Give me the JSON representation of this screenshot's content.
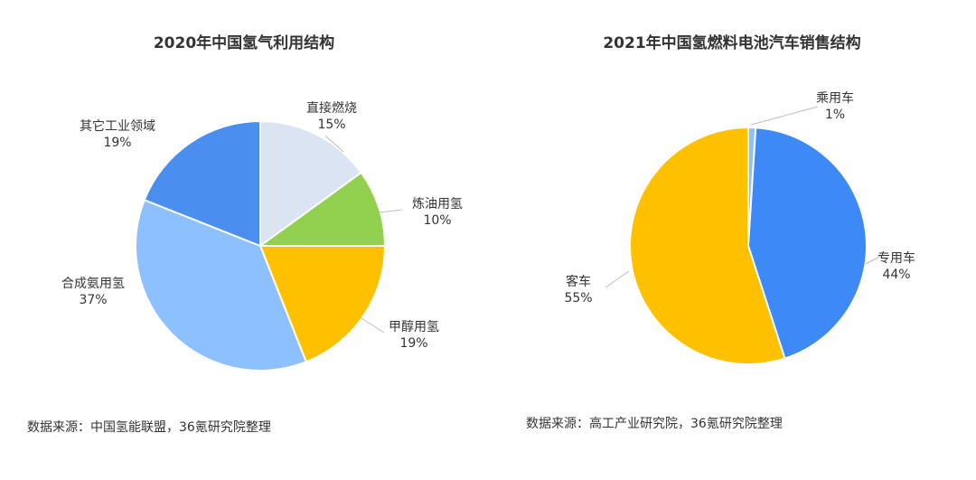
{
  "charts": [
    {
      "title": "2020年中国氢气利用结构",
      "source": "数据来源：中国氢能联盟，36氪研究院整理",
      "chart_data": {
        "type": "pie",
        "title": "2020年中国氢气利用结构",
        "slices": [
          {
            "name": "直接燃烧",
            "value": 15,
            "label": "15%",
            "color": "#dbe4f3"
          },
          {
            "name": "炼油用氢",
            "value": 10,
            "label": "10%",
            "color": "#92d050"
          },
          {
            "name": "甲醇用氢",
            "value": 19,
            "label": "19%",
            "color": "#ffc000"
          },
          {
            "name": "合成氨用氢",
            "value": 37,
            "label": "37%",
            "color": "#8cc0ff"
          },
          {
            "name": "其它工业领域",
            "value": 19,
            "label": "19%",
            "color": "#4a8ef0"
          }
        ]
      }
    },
    {
      "title": "2021年中国氢燃料电池汽车销售结构",
      "source": "数据来源：高工产业研究院，36氪研究院整理",
      "chart_data": {
        "type": "pie",
        "title": "2021年中国氢燃料电池汽车销售结构",
        "slices": [
          {
            "name": "乘用车",
            "value": 1,
            "label": "1%",
            "color": "#8cc0ff"
          },
          {
            "name": "专用车",
            "value": 44,
            "label": "44%",
            "color": "#3d8af7"
          },
          {
            "name": "客车",
            "value": 55,
            "label": "55%",
            "color": "#ffc000"
          }
        ]
      }
    }
  ]
}
